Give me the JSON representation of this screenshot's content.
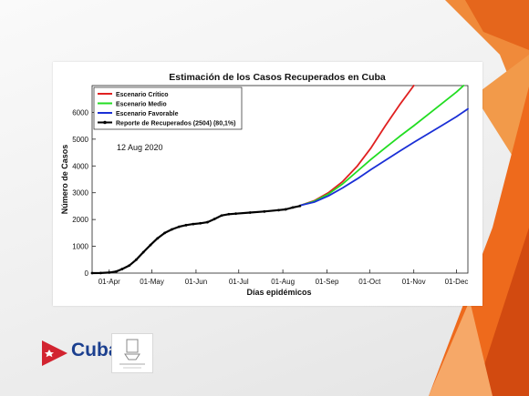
{
  "chart_data": {
    "type": "line",
    "title": "Estimación de los Casos Recuperados en Cuba",
    "xlabel": "Días epidémicos",
    "ylabel": "Número de Casos",
    "x_ticks": [
      "01-Apr",
      "01-May",
      "01-Jun",
      "01-Jul",
      "01-Aug",
      "01-Sep",
      "01-Oct",
      "01-Nov",
      "01-Dec"
    ],
    "x_ticks_doy": [
      91,
      121,
      152,
      182,
      213,
      244,
      274,
      305,
      335
    ],
    "xlim_doy": [
      79,
      343
    ],
    "ylim": [
      0,
      7000
    ],
    "y_ticks": [
      0,
      1000,
      2000,
      3000,
      4000,
      5000,
      6000
    ],
    "grid": false,
    "legend_position": "top-left",
    "annotation": "12 Aug 2020",
    "series": [
      {
        "name": "Escenario Crítico",
        "color": "#e02020",
        "style": "line",
        "x_doy": [
          225,
          235,
          245,
          255,
          265,
          275,
          285,
          295,
          305
        ],
        "y": [
          2520,
          2700,
          3000,
          3420,
          3980,
          4680,
          5500,
          6280,
          7000
        ]
      },
      {
        "name": "Escenario Medio",
        "color": "#22dd22",
        "style": "line",
        "x_doy": [
          225,
          235,
          245,
          255,
          265,
          275,
          285,
          295,
          305,
          315,
          325,
          335,
          340
        ],
        "y": [
          2520,
          2680,
          2950,
          3330,
          3790,
          4250,
          4680,
          5100,
          5500,
          5920,
          6340,
          6760,
          7000
        ]
      },
      {
        "name": "Escenario Favorable",
        "color": "#1a2fd6",
        "style": "line",
        "x_doy": [
          225,
          235,
          245,
          255,
          265,
          275,
          285,
          295,
          305,
          315,
          325,
          335,
          343
        ],
        "y": [
          2520,
          2650,
          2880,
          3180,
          3510,
          3870,
          4210,
          4550,
          4880,
          5200,
          5520,
          5840,
          6130
        ]
      },
      {
        "name": "Reporte de Recuperados (2504) (80,1%)",
        "color": "#000000",
        "style": "marker-line",
        "x_doy": [
          79,
          85,
          91,
          96,
          100,
          105,
          110,
          115,
          120,
          125,
          130,
          135,
          140,
          145,
          150,
          155,
          160,
          165,
          170,
          175,
          180,
          190,
          200,
          210,
          215,
          220,
          225
        ],
        "y": [
          0,
          5,
          20,
          60,
          150,
          280,
          500,
          780,
          1050,
          1300,
          1500,
          1630,
          1730,
          1790,
          1830,
          1860,
          1900,
          2020,
          2150,
          2200,
          2220,
          2260,
          2300,
          2350,
          2380,
          2450,
          2504
        ]
      }
    ]
  },
  "logos": {
    "country_label": "Cuba",
    "seal_caption": "UNIVERSIDAD DE LA HABANA"
  },
  "colors": {
    "accent_orange": "#ee6a1c",
    "accent_dark": "#d24a10",
    "brand_blue": "#1b3f8f",
    "flag_red": "#d22430"
  }
}
